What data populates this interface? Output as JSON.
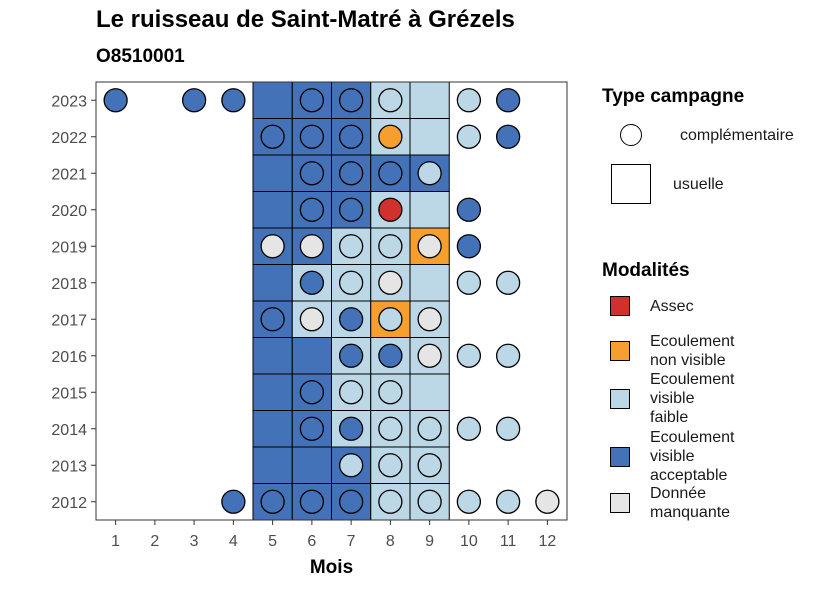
{
  "chart_data": {
    "type": "heatmap",
    "title": "Le ruisseau de Saint-Matré à Grézels",
    "subtitle": "O8510001",
    "xlabel": "Mois",
    "ylabel": "",
    "x_ticks": [
      "1",
      "2",
      "3",
      "4",
      "5",
      "6",
      "7",
      "8",
      "9",
      "10",
      "11",
      "12"
    ],
    "y_ticks": [
      "2012",
      "2013",
      "2014",
      "2015",
      "2016",
      "2017",
      "2018",
      "2019",
      "2020",
      "2021",
      "2022",
      "2023"
    ],
    "xlim": [
      0.5,
      12.5
    ],
    "ylim": [
      2011.5,
      2023.5
    ],
    "colors": {
      "Assec": "#d0312d",
      "Ecoulement non visible": "#f79f2e",
      "Ecoulement visible faible": "#bcd7e6",
      "Ecoulement visible acceptable": "#4472b8",
      "Donnée manquante": "#e5e5e5"
    },
    "usuelle": [
      {
        "year": 2023,
        "month": 5,
        "m": "Ecoulement visible acceptable"
      },
      {
        "year": 2023,
        "month": 6,
        "m": "Ecoulement visible acceptable"
      },
      {
        "year": 2023,
        "month": 7,
        "m": "Ecoulement visible acceptable"
      },
      {
        "year": 2023,
        "month": 8,
        "m": "Ecoulement visible faible"
      },
      {
        "year": 2023,
        "month": 9,
        "m": "Ecoulement visible faible"
      },
      {
        "year": 2022,
        "month": 5,
        "m": "Ecoulement visible acceptable"
      },
      {
        "year": 2022,
        "month": 6,
        "m": "Ecoulement visible acceptable"
      },
      {
        "year": 2022,
        "month": 7,
        "m": "Ecoulement visible acceptable"
      },
      {
        "year": 2022,
        "month": 8,
        "m": "Ecoulement visible faible"
      },
      {
        "year": 2022,
        "month": 9,
        "m": "Ecoulement visible faible"
      },
      {
        "year": 2021,
        "month": 5,
        "m": "Ecoulement visible acceptable"
      },
      {
        "year": 2021,
        "month": 6,
        "m": "Ecoulement visible acceptable"
      },
      {
        "year": 2021,
        "month": 7,
        "m": "Ecoulement visible acceptable"
      },
      {
        "year": 2021,
        "month": 8,
        "m": "Ecoulement visible acceptable"
      },
      {
        "year": 2021,
        "month": 9,
        "m": "Ecoulement visible acceptable"
      },
      {
        "year": 2020,
        "month": 5,
        "m": "Ecoulement visible acceptable"
      },
      {
        "year": 2020,
        "month": 6,
        "m": "Ecoulement visible acceptable"
      },
      {
        "year": 2020,
        "month": 7,
        "m": "Ecoulement visible acceptable"
      },
      {
        "year": 2020,
        "month": 8,
        "m": "Ecoulement visible faible"
      },
      {
        "year": 2020,
        "month": 9,
        "m": "Ecoulement visible faible"
      },
      {
        "year": 2019,
        "month": 5,
        "m": "Ecoulement visible acceptable"
      },
      {
        "year": 2019,
        "month": 6,
        "m": "Ecoulement visible acceptable"
      },
      {
        "year": 2019,
        "month": 7,
        "m": "Ecoulement visible faible"
      },
      {
        "year": 2019,
        "month": 8,
        "m": "Ecoulement visible faible"
      },
      {
        "year": 2019,
        "month": 9,
        "m": "Ecoulement non visible"
      },
      {
        "year": 2018,
        "month": 5,
        "m": "Ecoulement visible acceptable"
      },
      {
        "year": 2018,
        "month": 6,
        "m": "Ecoulement visible faible"
      },
      {
        "year": 2018,
        "month": 7,
        "m": "Ecoulement visible faible"
      },
      {
        "year": 2018,
        "month": 8,
        "m": "Ecoulement visible faible"
      },
      {
        "year": 2018,
        "month": 9,
        "m": "Ecoulement visible faible"
      },
      {
        "year": 2017,
        "month": 5,
        "m": "Ecoulement visible acceptable"
      },
      {
        "year": 2017,
        "month": 6,
        "m": "Ecoulement visible faible"
      },
      {
        "year": 2017,
        "month": 7,
        "m": "Ecoulement visible faible"
      },
      {
        "year": 2017,
        "month": 8,
        "m": "Ecoulement non visible"
      },
      {
        "year": 2017,
        "month": 9,
        "m": "Ecoulement visible faible"
      },
      {
        "year": 2016,
        "month": 5,
        "m": "Ecoulement visible acceptable"
      },
      {
        "year": 2016,
        "month": 6,
        "m": "Ecoulement visible acceptable"
      },
      {
        "year": 2016,
        "month": 7,
        "m": "Ecoulement visible faible"
      },
      {
        "year": 2016,
        "month": 8,
        "m": "Ecoulement visible faible"
      },
      {
        "year": 2016,
        "month": 9,
        "m": "Ecoulement visible faible"
      },
      {
        "year": 2015,
        "month": 5,
        "m": "Ecoulement visible acceptable"
      },
      {
        "year": 2015,
        "month": 6,
        "m": "Ecoulement visible acceptable"
      },
      {
        "year": 2015,
        "month": 7,
        "m": "Ecoulement visible faible"
      },
      {
        "year": 2015,
        "month": 8,
        "m": "Ecoulement visible faible"
      },
      {
        "year": 2015,
        "month": 9,
        "m": "Ecoulement visible faible"
      },
      {
        "year": 2014,
        "month": 5,
        "m": "Ecoulement visible acceptable"
      },
      {
        "year": 2014,
        "month": 6,
        "m": "Ecoulement visible acceptable"
      },
      {
        "year": 2014,
        "month": 7,
        "m": "Ecoulement visible faible"
      },
      {
        "year": 2014,
        "month": 8,
        "m": "Ecoulement visible faible"
      },
      {
        "year": 2014,
        "month": 9,
        "m": "Ecoulement visible faible"
      },
      {
        "year": 2013,
        "month": 5,
        "m": "Ecoulement visible acceptable"
      },
      {
        "year": 2013,
        "month": 6,
        "m": "Ecoulement visible acceptable"
      },
      {
        "year": 2013,
        "month": 7,
        "m": "Ecoulement visible acceptable"
      },
      {
        "year": 2013,
        "month": 8,
        "m": "Ecoulement visible faible"
      },
      {
        "year": 2013,
        "month": 9,
        "m": "Ecoulement visible faible"
      },
      {
        "year": 2012,
        "month": 5,
        "m": "Ecoulement visible acceptable"
      },
      {
        "year": 2012,
        "month": 6,
        "m": "Ecoulement visible acceptable"
      },
      {
        "year": 2012,
        "month": 7,
        "m": "Ecoulement visible acceptable"
      },
      {
        "year": 2012,
        "month": 8,
        "m": "Ecoulement visible faible"
      },
      {
        "year": 2012,
        "month": 9,
        "m": "Ecoulement visible faible"
      }
    ],
    "complementaire": [
      {
        "year": 2023,
        "month": 1,
        "m": "Ecoulement visible acceptable"
      },
      {
        "year": 2023,
        "month": 3,
        "m": "Ecoulement visible acceptable"
      },
      {
        "year": 2023,
        "month": 4,
        "m": "Ecoulement visible acceptable"
      },
      {
        "year": 2023,
        "month": 6,
        "m": "Ecoulement visible acceptable"
      },
      {
        "year": 2023,
        "month": 7,
        "m": "Ecoulement visible acceptable"
      },
      {
        "year": 2023,
        "month": 8,
        "m": "Ecoulement visible faible"
      },
      {
        "year": 2023,
        "month": 10,
        "m": "Ecoulement visible faible"
      },
      {
        "year": 2023,
        "month": 11,
        "m": "Ecoulement visible acceptable"
      },
      {
        "year": 2022,
        "month": 5,
        "m": "Ecoulement visible acceptable"
      },
      {
        "year": 2022,
        "month": 6,
        "m": "Ecoulement visible acceptable"
      },
      {
        "year": 2022,
        "month": 7,
        "m": "Ecoulement visible acceptable"
      },
      {
        "year": 2022,
        "month": 8,
        "m": "Ecoulement non visible"
      },
      {
        "year": 2022,
        "month": 10,
        "m": "Ecoulement visible faible"
      },
      {
        "year": 2022,
        "month": 11,
        "m": "Ecoulement visible acceptable"
      },
      {
        "year": 2021,
        "month": 6,
        "m": "Ecoulement visible acceptable"
      },
      {
        "year": 2021,
        "month": 7,
        "m": "Ecoulement visible acceptable"
      },
      {
        "year": 2021,
        "month": 8,
        "m": "Ecoulement visible acceptable"
      },
      {
        "year": 2021,
        "month": 9,
        "m": "Ecoulement visible faible"
      },
      {
        "year": 2020,
        "month": 6,
        "m": "Ecoulement visible acceptable"
      },
      {
        "year": 2020,
        "month": 7,
        "m": "Ecoulement visible acceptable"
      },
      {
        "year": 2020,
        "month": 8,
        "m": "Assec"
      },
      {
        "year": 2020,
        "month": 10,
        "m": "Ecoulement visible acceptable"
      },
      {
        "year": 2019,
        "month": 5,
        "m": "Donnée manquante"
      },
      {
        "year": 2019,
        "month": 6,
        "m": "Donnée manquante"
      },
      {
        "year": 2019,
        "month": 7,
        "m": "Ecoulement visible faible"
      },
      {
        "year": 2019,
        "month": 8,
        "m": "Ecoulement visible faible"
      },
      {
        "year": 2019,
        "month": 9,
        "m": "Donnée manquante"
      },
      {
        "year": 2019,
        "month": 10,
        "m": "Ecoulement visible acceptable"
      },
      {
        "year": 2018,
        "month": 6,
        "m": "Ecoulement visible acceptable"
      },
      {
        "year": 2018,
        "month": 7,
        "m": "Ecoulement visible faible"
      },
      {
        "year": 2018,
        "month": 8,
        "m": "Donnée manquante"
      },
      {
        "year": 2018,
        "month": 10,
        "m": "Ecoulement visible faible"
      },
      {
        "year": 2018,
        "month": 11,
        "m": "Ecoulement visible faible"
      },
      {
        "year": 2017,
        "month": 5,
        "m": "Ecoulement visible acceptable"
      },
      {
        "year": 2017,
        "month": 6,
        "m": "Donnée manquante"
      },
      {
        "year": 2017,
        "month": 7,
        "m": "Ecoulement visible acceptable"
      },
      {
        "year": 2017,
        "month": 8,
        "m": "Ecoulement visible faible"
      },
      {
        "year": 2017,
        "month": 9,
        "m": "Donnée manquante"
      },
      {
        "year": 2016,
        "month": 7,
        "m": "Ecoulement visible acceptable"
      },
      {
        "year": 2016,
        "month": 8,
        "m": "Ecoulement visible acceptable"
      },
      {
        "year": 2016,
        "month": 9,
        "m": "Donnée manquante"
      },
      {
        "year": 2016,
        "month": 10,
        "m": "Ecoulement visible faible"
      },
      {
        "year": 2016,
        "month": 11,
        "m": "Ecoulement visible faible"
      },
      {
        "year": 2015,
        "month": 6,
        "m": "Ecoulement visible acceptable"
      },
      {
        "year": 2015,
        "month": 7,
        "m": "Ecoulement visible faible"
      },
      {
        "year": 2015,
        "month": 8,
        "m": "Ecoulement visible faible"
      },
      {
        "year": 2014,
        "month": 6,
        "m": "Ecoulement visible acceptable"
      },
      {
        "year": 2014,
        "month": 7,
        "m": "Ecoulement visible acceptable"
      },
      {
        "year": 2014,
        "month": 8,
        "m": "Ecoulement visible faible"
      },
      {
        "year": 2014,
        "month": 9,
        "m": "Ecoulement visible faible"
      },
      {
        "year": 2014,
        "month": 10,
        "m": "Ecoulement visible faible"
      },
      {
        "year": 2014,
        "month": 11,
        "m": "Ecoulement visible faible"
      },
      {
        "year": 2013,
        "month": 7,
        "m": "Ecoulement visible faible"
      },
      {
        "year": 2013,
        "month": 8,
        "m": "Ecoulement visible faible"
      },
      {
        "year": 2013,
        "month": 9,
        "m": "Ecoulement visible faible"
      },
      {
        "year": 2012,
        "month": 4,
        "m": "Ecoulement visible acceptable"
      },
      {
        "year": 2012,
        "month": 5,
        "m": "Ecoulement visible acceptable"
      },
      {
        "year": 2012,
        "month": 6,
        "m": "Ecoulement visible acceptable"
      },
      {
        "year": 2012,
        "month": 7,
        "m": "Ecoulement visible acceptable"
      },
      {
        "year": 2012,
        "month": 8,
        "m": "Ecoulement visible faible"
      },
      {
        "year": 2012,
        "month": 9,
        "m": "Ecoulement visible faible"
      },
      {
        "year": 2012,
        "month": 10,
        "m": "Ecoulement visible faible"
      },
      {
        "year": 2012,
        "month": 11,
        "m": "Ecoulement visible faible"
      },
      {
        "year": 2012,
        "month": 12,
        "m": "Donnée manquante"
      }
    ]
  },
  "legend": {
    "type_title": "Type campagne",
    "type_complementaire": "complémentaire",
    "type_usuelle": "usuelle",
    "mod_title": "Modalités",
    "mod_items": [
      {
        "lines": [
          "Assec"
        ],
        "color": "#d0312d"
      },
      {
        "lines": [
          "Ecoulement",
          "non visible"
        ],
        "color": "#f79f2e"
      },
      {
        "lines": [
          "Ecoulement",
          "visible",
          "faible"
        ],
        "color": "#bcd7e6"
      },
      {
        "lines": [
          "Ecoulement",
          "visible",
          "acceptable"
        ],
        "color": "#4472b8"
      },
      {
        "lines": [
          "Donnée",
          "manquante"
        ],
        "color": "#e5e5e5"
      }
    ]
  }
}
